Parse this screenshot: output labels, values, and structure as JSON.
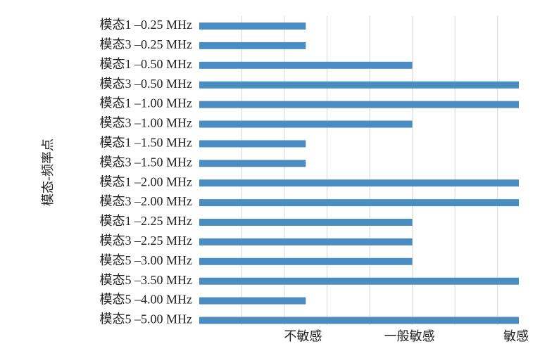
{
  "chart_data": {
    "type": "bar",
    "orientation": "horizontal",
    "y_label": "模态-频率点",
    "categories": [
      "模态1 –0.25 MHz",
      "模态3 –0.25 MHz",
      "模态1 –0.50 MHz",
      "模态3 –0.50 MHz",
      "模态1 –1.00 MHz",
      "模态3 –1.00 MHz",
      "模态1 –1.50 MHz",
      "模态3 –1.50 MHz",
      "模态1 –2.00 MHz",
      "模态3 –2.00 MHz",
      "模态1 –2.25 MHz",
      "模态3 –2.25 MHz",
      "模态5 –3.00 MHz",
      "模态5 –3.50 MHz",
      "模态5 –4.00 MHz",
      "模态5 –5.00 MHz"
    ],
    "values": [
      1,
      1,
      2,
      3,
      3,
      2,
      1,
      1,
      3,
      3,
      2,
      2,
      2,
      3,
      1,
      3
    ],
    "color": "#4a8dc2",
    "xlim": [
      0,
      3
    ],
    "xticks": [
      {
        "value": 1,
        "label": "不敏感"
      },
      {
        "value": 2,
        "label": "一般敏感"
      },
      {
        "value": 3,
        "label": "敏感"
      }
    ],
    "xgrid": [
      0.4,
      0.8,
      1.2,
      1.6,
      2.0,
      2.4,
      2.8
    ],
    "grid": true
  }
}
